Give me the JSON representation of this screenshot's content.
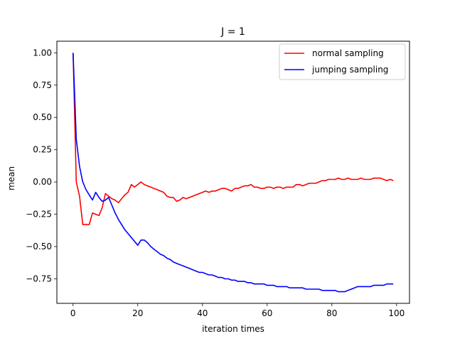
{
  "chart_data": {
    "type": "line",
    "title": "J = 1",
    "xlabel": "iteration times",
    "ylabel": "mean",
    "xlim": [
      -5,
      104
    ],
    "ylim": [
      -0.94,
      1.09
    ],
    "xticks": [
      0,
      20,
      40,
      60,
      80,
      100
    ],
    "xtick_labels": [
      "0",
      "20",
      "40",
      "60",
      "80",
      "100"
    ],
    "yticks": [
      -0.75,
      -0.5,
      -0.25,
      0.0,
      0.25,
      0.5,
      0.75,
      1.0
    ],
    "ytick_labels": [
      "−0.75",
      "−0.50",
      "−0.25",
      "0.00",
      "0.25",
      "0.50",
      "0.75",
      "1.00"
    ],
    "grid": false,
    "legend_position": "upper right",
    "series": [
      {
        "name": "normal sampling",
        "color": "#ff0000",
        "x": [
          0,
          1,
          2,
          3,
          4,
          5,
          6,
          7,
          8,
          9,
          10,
          11,
          12,
          13,
          14,
          15,
          16,
          17,
          18,
          19,
          20,
          21,
          22,
          23,
          24,
          25,
          26,
          27,
          28,
          29,
          30,
          31,
          32,
          33,
          34,
          35,
          36,
          37,
          38,
          39,
          40,
          41,
          42,
          43,
          44,
          45,
          46,
          47,
          48,
          49,
          50,
          51,
          52,
          53,
          54,
          55,
          56,
          57,
          58,
          59,
          60,
          61,
          62,
          63,
          64,
          65,
          66,
          67,
          68,
          69,
          70,
          71,
          72,
          73,
          74,
          75,
          76,
          77,
          78,
          79,
          80,
          81,
          82,
          83,
          84,
          85,
          86,
          87,
          88,
          89,
          90,
          91,
          92,
          93,
          94,
          95,
          96,
          97,
          98,
          99
        ],
        "y": [
          1.0,
          0.0,
          -0.11,
          -0.33,
          -0.33,
          -0.33,
          -0.24,
          -0.25,
          -0.26,
          -0.2,
          -0.09,
          -0.11,
          -0.13,
          -0.14,
          -0.16,
          -0.13,
          -0.1,
          -0.08,
          -0.02,
          -0.04,
          -0.02,
          0.0,
          -0.02,
          -0.03,
          -0.04,
          -0.05,
          -0.06,
          -0.07,
          -0.08,
          -0.11,
          -0.12,
          -0.12,
          -0.15,
          -0.14,
          -0.12,
          -0.13,
          -0.12,
          -0.11,
          -0.1,
          -0.09,
          -0.08,
          -0.07,
          -0.08,
          -0.07,
          -0.07,
          -0.06,
          -0.05,
          -0.05,
          -0.06,
          -0.07,
          -0.05,
          -0.05,
          -0.04,
          -0.03,
          -0.03,
          -0.02,
          -0.04,
          -0.04,
          -0.05,
          -0.05,
          -0.04,
          -0.04,
          -0.05,
          -0.04,
          -0.04,
          -0.05,
          -0.04,
          -0.04,
          -0.04,
          -0.02,
          -0.02,
          -0.03,
          -0.02,
          -0.01,
          -0.01,
          -0.01,
          0.0,
          0.01,
          0.01,
          0.02,
          0.02,
          0.02,
          0.03,
          0.02,
          0.02,
          0.03,
          0.02,
          0.02,
          0.02,
          0.03,
          0.02,
          0.02,
          0.02,
          0.03,
          0.03,
          0.03,
          0.02,
          0.01,
          0.02,
          0.01
        ]
      },
      {
        "name": "jumping sampling",
        "color": "#0000ff",
        "x": [
          0,
          1,
          2,
          3,
          4,
          5,
          6,
          7,
          8,
          9,
          10,
          11,
          12,
          13,
          14,
          15,
          16,
          17,
          18,
          19,
          20,
          21,
          22,
          23,
          24,
          25,
          26,
          27,
          28,
          29,
          30,
          31,
          32,
          33,
          34,
          35,
          36,
          37,
          38,
          39,
          40,
          41,
          42,
          43,
          44,
          45,
          46,
          47,
          48,
          49,
          50,
          51,
          52,
          53,
          54,
          55,
          56,
          57,
          58,
          59,
          60,
          61,
          62,
          63,
          64,
          65,
          66,
          67,
          68,
          69,
          70,
          71,
          72,
          73,
          74,
          75,
          76,
          77,
          78,
          79,
          80,
          81,
          82,
          83,
          84,
          85,
          86,
          87,
          88,
          89,
          90,
          91,
          92,
          93,
          94,
          95,
          96,
          97,
          98,
          99
        ],
        "y": [
          1.0,
          0.33,
          0.12,
          0.0,
          -0.06,
          -0.1,
          -0.14,
          -0.08,
          -0.12,
          -0.15,
          -0.14,
          -0.12,
          -0.18,
          -0.24,
          -0.29,
          -0.33,
          -0.37,
          -0.4,
          -0.43,
          -0.46,
          -0.49,
          -0.45,
          -0.45,
          -0.47,
          -0.5,
          -0.52,
          -0.54,
          -0.56,
          -0.57,
          -0.59,
          -0.6,
          -0.62,
          -0.63,
          -0.64,
          -0.65,
          -0.66,
          -0.67,
          -0.68,
          -0.69,
          -0.7,
          -0.7,
          -0.71,
          -0.72,
          -0.72,
          -0.73,
          -0.74,
          -0.74,
          -0.75,
          -0.75,
          -0.76,
          -0.76,
          -0.77,
          -0.77,
          -0.77,
          -0.78,
          -0.78,
          -0.79,
          -0.79,
          -0.79,
          -0.79,
          -0.8,
          -0.8,
          -0.8,
          -0.81,
          -0.81,
          -0.81,
          -0.81,
          -0.82,
          -0.82,
          -0.82,
          -0.82,
          -0.82,
          -0.83,
          -0.83,
          -0.83,
          -0.83,
          -0.83,
          -0.84,
          -0.84,
          -0.84,
          -0.84,
          -0.84,
          -0.85,
          -0.85,
          -0.85,
          -0.84,
          -0.83,
          -0.82,
          -0.81,
          -0.81,
          -0.81,
          -0.81,
          -0.81,
          -0.8,
          -0.8,
          -0.8,
          -0.8,
          -0.79,
          -0.79,
          -0.79
        ]
      }
    ]
  }
}
